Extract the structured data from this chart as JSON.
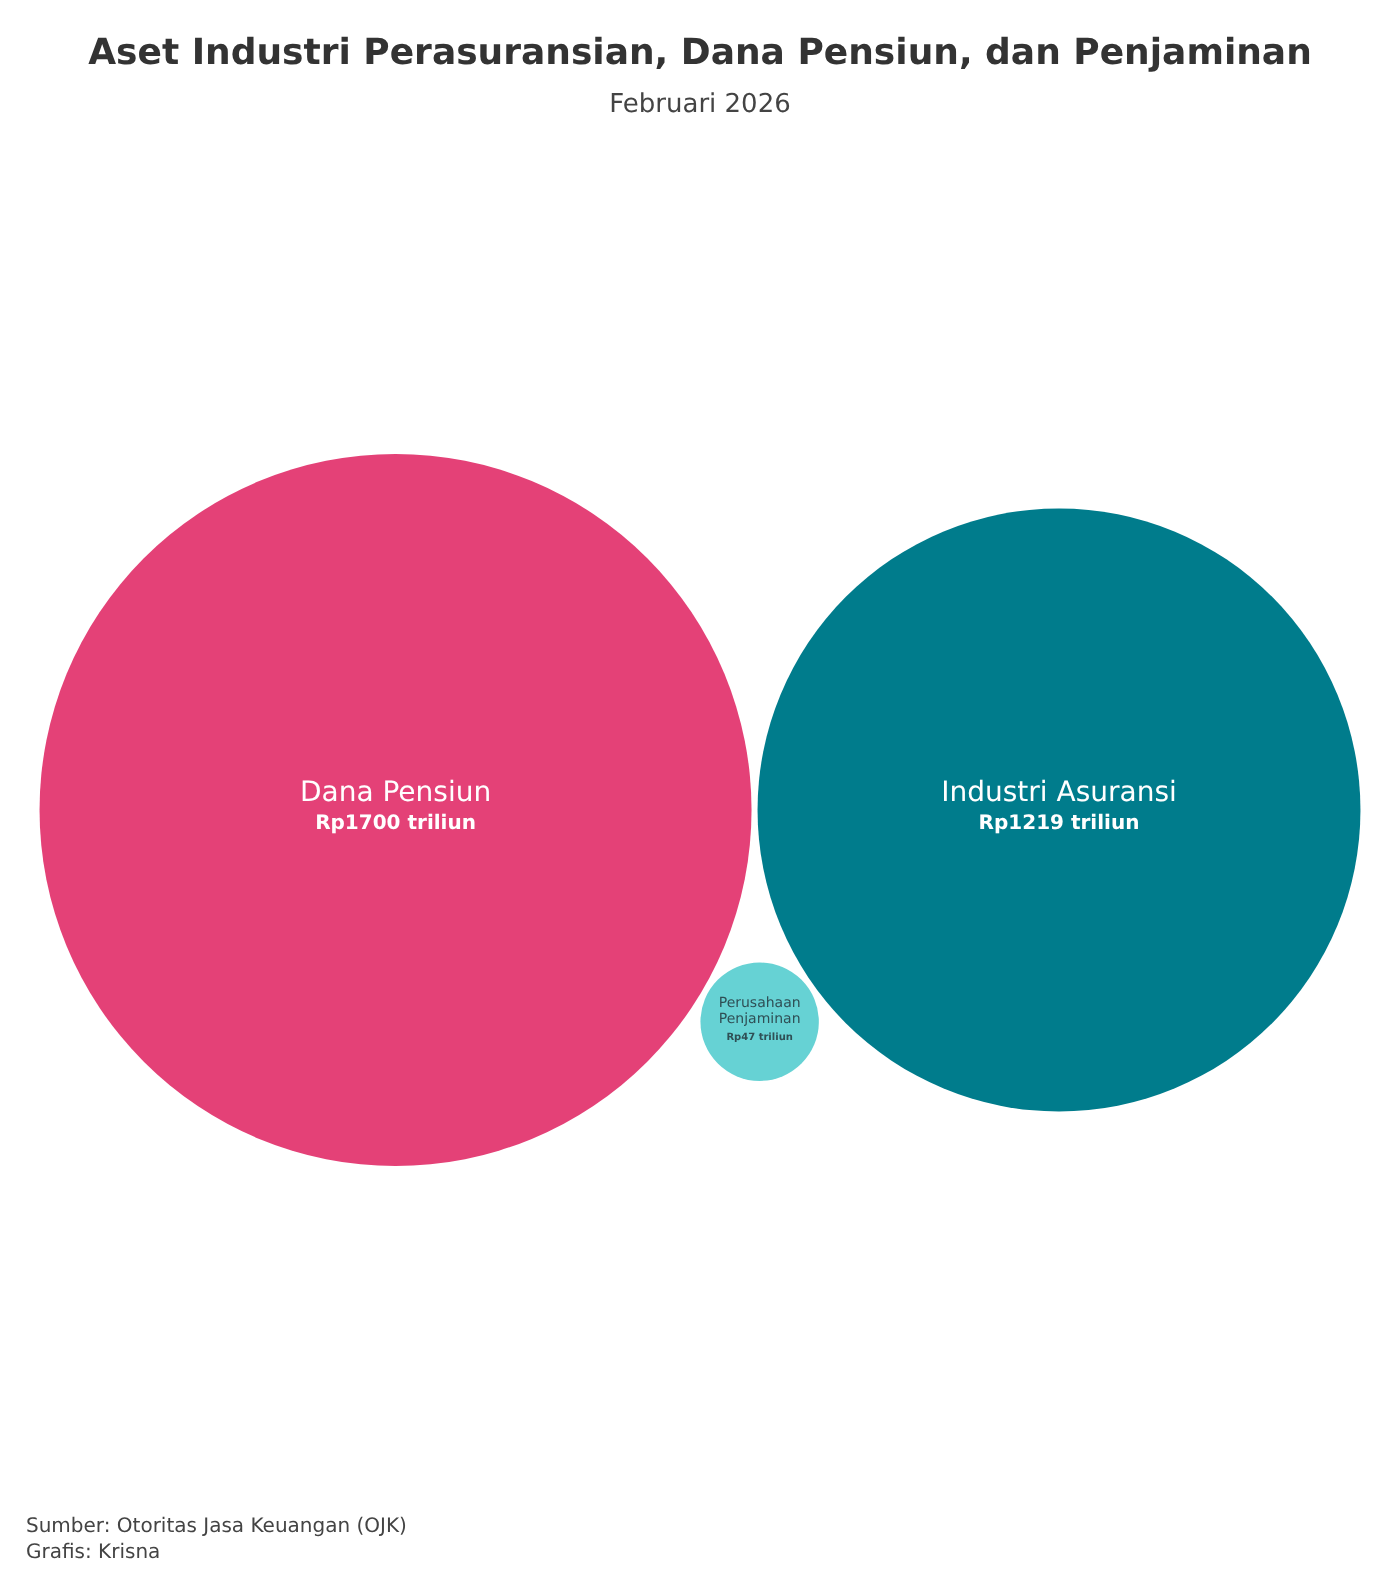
{
  "chart_data": {
    "type": "other",
    "title": "Aset Industri Perasuransian, Dana Pensiun, dan Penjaminan",
    "subtitle": "Februari 2026",
    "categories": [
      "Dana Pensiun",
      "Industri Asuransi",
      "Perusahaan Penjaminan"
    ],
    "values": [
      1700,
      1219,
      47
    ],
    "value_labels": [
      "Rp1700 triliun",
      "Rp1219 triliun",
      "Rp47 triliun"
    ],
    "colors": [
      "#e44177",
      "#007c8c",
      "#66d2d4"
    ],
    "annotations": [
      "Sumber: Otoritas Jasa Keuangan (OJK)",
      "Grafis: Krisna"
    ]
  }
}
